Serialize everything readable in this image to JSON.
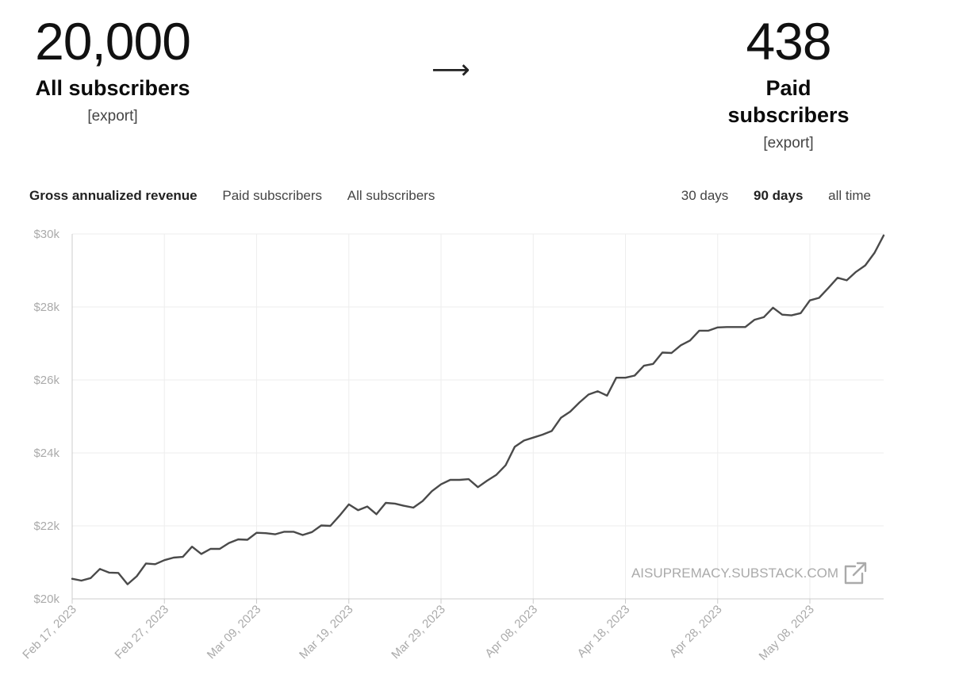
{
  "summary": {
    "all_subscribers": {
      "value": "20,000",
      "label": "All subscribers",
      "export": "[export]"
    },
    "arrow": "⟶",
    "paid_subscribers": {
      "value": "438",
      "label": "Paid subscribers",
      "export": "[export]"
    }
  },
  "tabs": [
    {
      "label": "Gross annualized revenue",
      "active": true
    },
    {
      "label": "Paid subscribers",
      "active": false
    },
    {
      "label": "All subscribers",
      "active": false
    }
  ],
  "ranges": [
    {
      "label": "30 days",
      "active": false
    },
    {
      "label": "90 days",
      "active": true
    },
    {
      "label": "all time",
      "active": false
    }
  ],
  "watermark": {
    "text": "AISUPREMACY.SUBSTACK.COM",
    "icon": "external-link-icon"
  },
  "colors": {
    "line": "#4a4a4a",
    "grid": "#eeeeee",
    "axis_text": "#aaaaaa"
  },
  "chart_data": {
    "type": "line",
    "title": "",
    "xlabel": "",
    "ylabel": "",
    "x_ticks": [
      "Feb 17, 2023",
      "Feb 27, 2023",
      "Mar 09, 2023",
      "Mar 19, 2023",
      "Mar 29, 2023",
      "Apr 08, 2023",
      "Apr 18, 2023",
      "Apr 28, 2023",
      "May 08, 2023"
    ],
    "y_ticks": [
      "$20k",
      "$22k",
      "$24k",
      "$26k",
      "$28k",
      "$30k"
    ],
    "ylim": [
      20000,
      30000
    ],
    "x_start": "2023-02-17",
    "x_end": "2023-05-16",
    "grid": true,
    "series": [
      {
        "values": [
          20550,
          20500,
          20570,
          20820,
          20720,
          20710,
          20400,
          20620,
          20970,
          20950,
          21060,
          21130,
          21150,
          21430,
          21230,
          21370,
          21370,
          21530,
          21630,
          21620,
          21810,
          21800,
          21770,
          21840,
          21840,
          21750,
          21830,
          22010,
          22000,
          22280,
          22590,
          22430,
          22530,
          22320,
          22630,
          22610,
          22550,
          22500,
          22680,
          22950,
          23140,
          23260,
          23260,
          23280,
          23060,
          23240,
          23400,
          23660,
          24170,
          24340,
          24420,
          24500,
          24600,
          24960,
          25130,
          25380,
          25600,
          25690,
          25570,
          26060,
          26060,
          26120,
          26390,
          26440,
          26750,
          26740,
          26950,
          27080,
          27350,
          27350,
          27440,
          27450,
          27450,
          27450,
          27650,
          27720,
          27980,
          27790,
          27770,
          27830,
          28180,
          28250,
          28520,
          28800,
          28730,
          28960,
          29140,
          29480,
          29960
        ]
      }
    ]
  }
}
